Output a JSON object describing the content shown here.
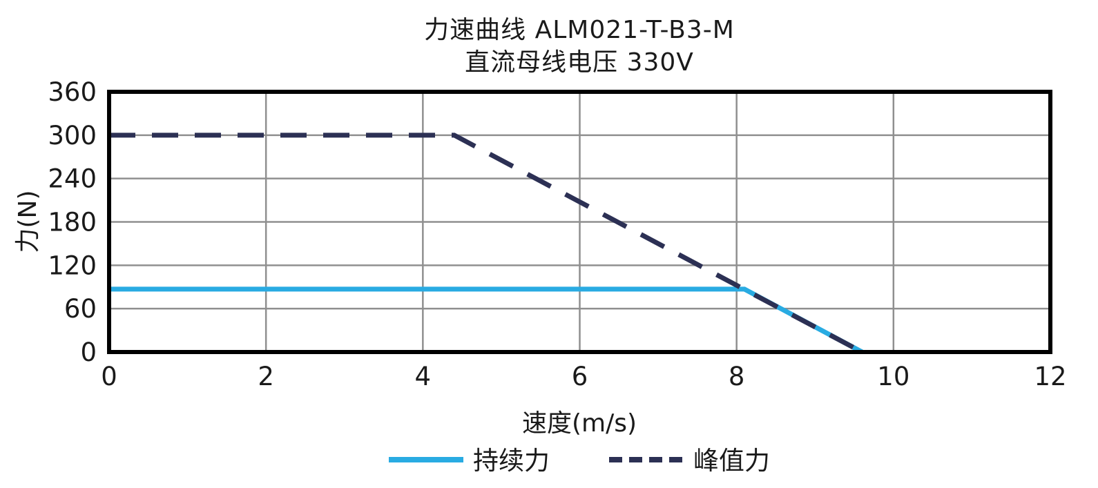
{
  "chart_data": {
    "type": "line",
    "title": "力速曲线 ALM021-T-B3-M",
    "subtitle": "直流母线电压 330V",
    "xlabel": "速度(m/s)",
    "ylabel": "力(N)",
    "xlim": [
      0,
      12
    ],
    "ylim": [
      0,
      360
    ],
    "xticks": [
      0,
      2,
      4,
      6,
      8,
      10,
      12
    ],
    "yticks": [
      0,
      60,
      120,
      180,
      240,
      300,
      360
    ],
    "grid": true,
    "legend_position": "bottom-center",
    "colors": {
      "continuous_force": "#29abe2",
      "peak_force": "#2c3054",
      "gridline": "#8f8f8f",
      "frame": "#000000",
      "text": "#1a1a1a"
    },
    "series": [
      {
        "key": "continuous-force",
        "name": "持续力",
        "style": "solid",
        "color": "#29abe2",
        "points": [
          [
            0,
            87
          ],
          [
            8.1,
            87
          ],
          [
            9.6,
            0
          ]
        ]
      },
      {
        "key": "peak-force",
        "name": "峰值力",
        "style": "dashed",
        "color": "#2c3054",
        "points": [
          [
            0,
            300
          ],
          [
            4.4,
            300
          ],
          [
            9.6,
            0
          ]
        ]
      }
    ]
  }
}
